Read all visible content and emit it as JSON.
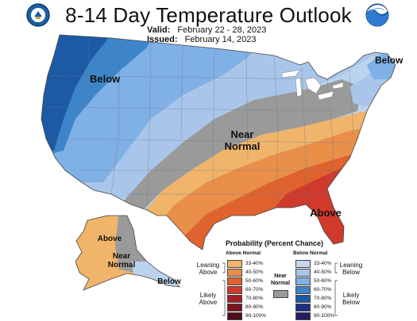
{
  "header": {
    "title": "8-14 Day Temperature Outlook",
    "valid_label": "Valid:",
    "valid_value": "February 22 - 28, 2023",
    "issued_label": "Issued:",
    "issued_value": "February 14, 2023"
  },
  "map_labels": {
    "west_below": "Below",
    "northeast_below": "Below",
    "central_near_normal_1": "Near",
    "central_near_normal_2": "Normal",
    "southeast_above": "Above",
    "alaska_above": "Above",
    "alaska_near_1": "Near",
    "alaska_near_2": "Normal",
    "alaska_below": "Below"
  },
  "legend": {
    "title": "Probability (Percent Chance)",
    "above_header": "Above Normal",
    "below_header": "Below Normal",
    "near_label_1": "Near",
    "near_label_2": "Normal",
    "leaning_above_1": "Leaning",
    "leaning_above_2": "Above",
    "likely_above_1": "Likely",
    "likely_above_2": "Above",
    "leaning_below_1": "Leaning",
    "leaning_below_2": "Below",
    "likely_below_1": "Likely",
    "likely_below_2": "Below",
    "above": [
      {
        "range": "33-40%",
        "color": "#f0b46a"
      },
      {
        "range": "40-50%",
        "color": "#e98f4a"
      },
      {
        "range": "50-60%",
        "color": "#e0622e"
      },
      {
        "range": "60-70%",
        "color": "#cf3a2c"
      },
      {
        "range": "70-80%",
        "color": "#a81e28"
      },
      {
        "range": "80-90%",
        "color": "#7d1422"
      },
      {
        "range": "90-100%",
        "color": "#4f0d17"
      }
    ],
    "below": [
      {
        "range": "33-40%",
        "color": "#c9d6ec"
      },
      {
        "range": "40-50%",
        "color": "#a9c6ea"
      },
      {
        "range": "50-60%",
        "color": "#7fb0e6"
      },
      {
        "range": "60-70%",
        "color": "#3d85c8"
      },
      {
        "range": "70-80%",
        "color": "#1c5aa6"
      },
      {
        "range": "80-90%",
        "color": "#1b2f87"
      },
      {
        "range": "90-100%",
        "color": "#2a1a66"
      }
    ],
    "near_color": "#9a9a9a"
  }
}
